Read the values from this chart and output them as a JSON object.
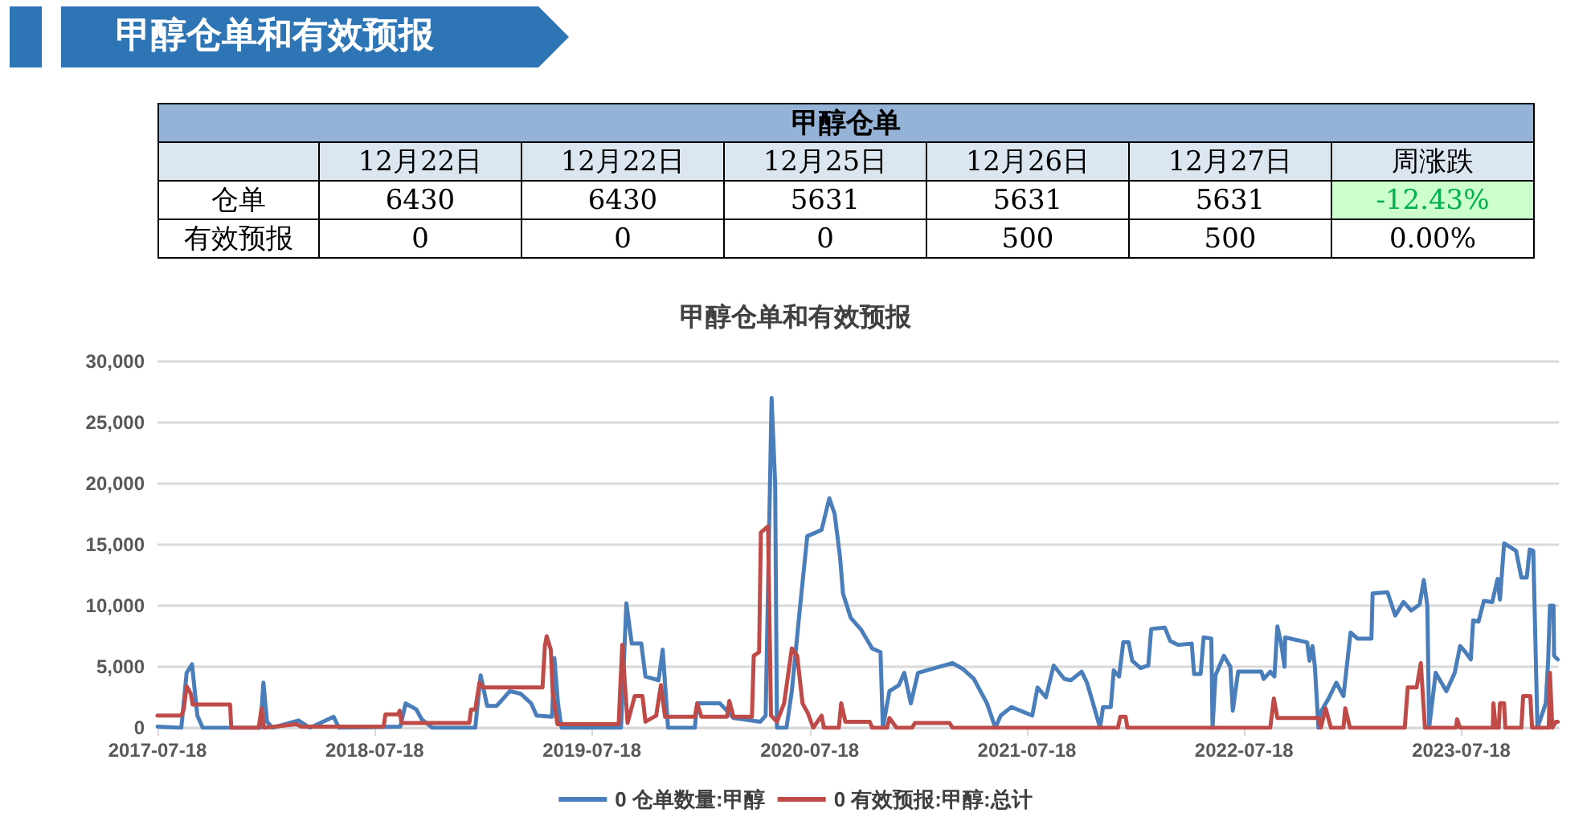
{
  "chart_data": [
    {
      "type": "other",
      "title": "甲醇仓单和有效预报",
      "subtitle": "甲醇仓单",
      "categories": [
        "12月22日",
        "12月22日",
        "12月25日",
        "12月26日",
        "12月27日",
        "周涨跌"
      ],
      "y_categories": [
        "仓单",
        "有效预报"
      ],
      "cell_labels": [
        [
          "6430",
          "6430",
          "5631",
          "5631",
          "5631",
          "-12.43%"
        ],
        [
          "0",
          "0",
          "0",
          "500",
          "500",
          "0.00%"
        ]
      ]
    },
    {
      "type": "line",
      "title": "甲醇仓单和有效预报",
      "xlim": [
        "2017-07-18",
        "2023-12-29"
      ],
      "xticks": [
        "2017-07-18",
        "2018-07-18",
        "2019-07-18",
        "2020-07-18",
        "2021-07-18",
        "2022-07-18",
        "2023-07-18"
      ],
      "ylim": [
        0,
        30000
      ],
      "yticks": [
        0,
        {
          "value": 5000,
          "label": "5,000"
        },
        {
          "value": 10000,
          "label": "10,000"
        },
        {
          "value": 15000,
          "label": "15,000"
        },
        {
          "value": 20000,
          "label": "20,000"
        },
        {
          "value": 25000,
          "label": "25,000"
        },
        {
          "value": 30000,
          "label": "30,000"
        }
      ],
      "grid": "y",
      "legend": "bottom",
      "marker": "none",
      "line_style": "solid",
      "series": [
        {
          "name": "0 仓单数量:甲醇",
          "color": "#4a7ebb",
          "x": [
            "2017-07-18",
            "2017-08-27",
            "2017-09-05",
            "2017-09-14",
            "2017-09-23",
            "2017-10-02",
            "2018-01-07",
            "2018-01-12",
            "2018-01-18",
            "2018-01-27",
            "2018-03-12",
            "2018-03-31",
            "2018-05-10",
            "2018-05-19",
            "2018-08-30",
            "2018-09-08",
            "2018-09-26",
            "2018-10-05",
            "2018-10-23",
            "2019-01-03",
            "2019-01-12",
            "2019-01-23",
            "2019-02-08",
            "2019-02-21",
            "2019-03-02",
            "2019-03-20",
            "2019-04-07",
            "2019-04-16",
            "2019-05-12",
            "2019-05-16",
            "2019-05-22",
            "2019-05-28",
            "2019-09-05",
            "2019-09-14",
            "2019-09-23",
            "2019-10-09",
            "2019-10-16",
            "2019-11-07",
            "2019-11-14",
            "2019-11-23",
            "2020-01-07",
            "2020-01-11",
            "2020-02-18",
            "2020-03-03",
            "2020-03-12",
            "2020-04-26",
            "2020-05-05",
            "2020-05-15",
            "2020-05-21",
            "2020-05-24",
            "2020-06-09",
            "2020-06-18",
            "2020-07-02",
            "2020-07-14",
            "2020-08-07",
            "2020-08-20",
            "2020-08-29",
            "2020-09-07",
            "2020-09-12",
            "2020-09-25",
            "2020-10-13",
            "2020-10-31",
            "2020-11-14",
            "2020-11-18",
            "2020-11-29",
            "2020-12-15",
            "2020-12-24",
            "2021-01-04",
            "2021-01-16",
            "2021-03-15",
            "2021-04-02",
            "2021-04-20",
            "2021-05-12",
            "2021-05-26",
            "2021-06-04",
            "2021-06-22",
            "2021-07-27",
            "2021-08-05",
            "2021-08-19",
            "2021-09-01",
            "2021-09-19",
            "2021-09-30",
            "2021-10-18",
            "2021-10-27",
            "2021-11-05",
            "2021-11-18",
            "2021-11-23",
            "2021-12-06",
            "2021-12-11",
            "2021-12-20",
            "2021-12-27",
            "2022-01-05",
            "2022-01-11",
            "2022-01-25",
            "2022-02-07",
            "2022-02-12",
            "2022-03-07",
            "2022-03-16",
            "2022-03-29",
            "2022-04-21",
            "2022-04-25",
            "2022-05-06",
            "2022-05-11",
            "2022-05-24",
            "2022-05-26",
            "2022-05-31",
            "2022-06-14",
            "2022-06-25",
            "2022-06-29",
            "2022-07-08",
            "2022-08-16",
            "2022-08-20",
            "2022-08-31",
            "2022-09-07",
            "2022-09-12",
            "2022-09-18",
            "2022-09-24",
            "2022-09-25",
            "2022-11-01",
            "2022-11-05",
            "2022-11-10",
            "2022-11-14",
            "2022-11-20",
            "2022-11-24",
            "2022-12-07",
            "2022-12-20",
            "2023-01-01",
            "2023-01-13",
            "2023-01-25",
            "2023-02-17",
            "2023-02-19",
            "2023-03-16",
            "2023-03-29",
            "2023-04-12",
            "2023-04-25",
            "2023-05-09",
            "2023-05-16",
            "2023-05-22",
            "2023-05-25",
            "2023-06-05",
            "2023-06-23",
            "2023-07-07",
            "2023-07-16",
            "2023-07-25",
            "2023-08-03",
            "2023-08-07",
            "2023-08-16",
            "2023-08-25",
            "2023-09-08",
            "2023-09-17",
            "2023-09-21",
            "2023-09-28",
            "2023-10-18",
            "2023-10-27",
            "2023-11-05",
            "2023-11-10",
            "2023-11-16",
            "2023-11-23",
            "2023-12-07",
            "2023-12-11",
            "2023-12-14",
            "2023-12-20",
            "2023-12-21",
            "2023-12-27"
          ],
          "values": [
            100,
            0,
            4500,
            5200,
            1000,
            0,
            0,
            3700,
            500,
            0,
            600,
            0,
            900,
            0,
            100,
            2000,
            1500,
            700,
            0,
            0,
            4300,
            1800,
            1800,
            2500,
            3000,
            2800,
            2000,
            1000,
            900,
            5700,
            2000,
            0,
            0,
            10200,
            6900,
            6900,
            4200,
            3900,
            6400,
            0,
            0,
            2000,
            2000,
            1300,
            800,
            500,
            1000,
            27000,
            20000,
            0,
            0,
            3000,
            10000,
            15700,
            16200,
            18800,
            17500,
            14000,
            11000,
            9000,
            8000,
            6500,
            6200,
            0,
            3000,
            3500,
            4500,
            2000,
            4500,
            5300,
            4800,
            4000,
            2000,
            0,
            1000,
            1700,
            1000,
            3300,
            2500,
            5100,
            4000,
            3900,
            4600,
            3700,
            2200,
            0,
            1700,
            1700,
            4700,
            4200,
            7000,
            7000,
            5500,
            4900,
            5100,
            8100,
            8200,
            7100,
            6800,
            6900,
            4400,
            4400,
            7400,
            7300,
            0,
            4300,
            5900,
            5000,
            1400,
            4600,
            4600,
            4000,
            4600,
            4200,
            8300,
            7000,
            5000,
            7400,
            7000,
            5500,
            6700,
            5000,
            0,
            1300,
            2400,
            3700,
            2600,
            7800,
            7300,
            7300,
            11000,
            11100,
            9200,
            10300,
            9600,
            10100,
            12100,
            10000,
            0,
            4500,
            3000,
            4500,
            6700,
            6200,
            5600,
            8800,
            8700,
            10400,
            10300,
            12200,
            10500,
            15100,
            14500,
            12300,
            12300,
            14600,
            14500,
            0,
            2000,
            5500,
            10000,
            10000,
            5900,
            5600
          ]
        },
        {
          "name": "0 有效预报:甲醇:总计",
          "color": "#be4b48",
          "x": [
            "2017-07-18",
            "2017-08-27",
            "2017-08-31",
            "2017-09-05",
            "2017-09-12",
            "2017-09-15",
            "2017-11-17",
            "2017-11-19",
            "2018-01-04",
            "2018-01-09",
            "2018-01-13",
            "2018-03-08",
            "2018-03-17",
            "2018-08-02",
            "2018-08-05",
            "2018-08-26",
            "2018-08-29",
            "2018-09-01",
            "2018-12-24",
            "2018-12-27",
            "2019-01-03",
            "2019-01-10",
            "2019-01-17",
            "2019-04-26",
            "2019-04-30",
            "2019-05-03",
            "2019-05-10",
            "2019-05-13",
            "2019-05-21",
            "2019-09-01",
            "2019-09-07",
            "2019-09-16",
            "2019-09-28",
            "2019-10-11",
            "2019-10-16",
            "2019-11-03",
            "2019-11-11",
            "2019-11-18",
            "2020-01-07",
            "2020-01-11",
            "2020-01-18",
            "2020-03-01",
            "2020-03-05",
            "2020-03-12",
            "2020-04-12",
            "2020-04-15",
            "2020-04-24",
            "2020-04-27",
            "2020-05-09",
            "2020-05-14",
            "2020-05-24",
            "2020-06-05",
            "2020-06-18",
            "2020-06-27",
            "2020-07-06",
            "2020-07-15",
            "2020-07-24",
            "2020-08-07",
            "2020-08-11",
            "2020-09-05",
            "2020-09-09",
            "2020-09-16",
            "2020-10-27",
            "2020-10-31",
            "2020-11-25",
            "2020-11-29",
            "2020-12-11",
            "2021-01-06",
            "2021-01-11",
            "2021-03-10",
            "2021-03-15",
            "2021-12-18",
            "2021-12-22",
            "2021-12-31",
            "2022-01-03",
            "2022-08-31",
            "2022-09-06",
            "2022-09-12",
            "2022-11-20",
            "2022-11-24",
            "2022-12-02",
            "2022-12-11",
            "2023-01-01",
            "2023-01-04",
            "2023-01-12",
            "2023-04-14",
            "2023-04-19",
            "2023-05-04",
            "2023-05-11",
            "2023-05-18",
            "2023-07-09",
            "2023-07-11",
            "2023-07-16",
            "2023-09-09",
            "2023-09-10",
            "2023-09-14",
            "2023-09-19",
            "2023-09-21",
            "2023-09-28",
            "2023-09-30",
            "2023-10-27",
            "2023-10-30",
            "2023-11-11",
            "2023-11-14",
            "2023-12-12",
            "2023-12-14",
            "2023-12-18",
            "2023-12-24",
            "2023-12-27"
          ],
          "values": [
            1000,
            1000,
            1500,
            3400,
            2800,
            1900,
            1900,
            0,
            0,
            1600,
            0,
            300,
            100,
            100,
            1100,
            1100,
            1400,
            400,
            400,
            1500,
            1500,
            3700,
            3300,
            3300,
            6700,
            7500,
            6400,
            3000,
            300,
            300,
            6800,
            400,
            2600,
            2600,
            500,
            1000,
            3500,
            900,
            900,
            2000,
            900,
            900,
            2200,
            900,
            900,
            5900,
            6200,
            16000,
            16500,
            1000,
            500,
            2000,
            6500,
            5900,
            2000,
            1200,
            0,
            1000,
            0,
            0,
            2000,
            500,
            500,
            0,
            0,
            800,
            0,
            0,
            400,
            400,
            0,
            0,
            900,
            900,
            0,
            0,
            2400,
            800,
            800,
            0,
            1600,
            0,
            0,
            1600,
            0,
            0,
            3300,
            3300,
            5300,
            0,
            0,
            700,
            0,
            0,
            2000,
            0,
            0,
            2000,
            2000,
            0,
            0,
            2600,
            2600,
            0,
            0,
            4500,
            0,
            500,
            500
          ]
        }
      ]
    }
  ]
}
